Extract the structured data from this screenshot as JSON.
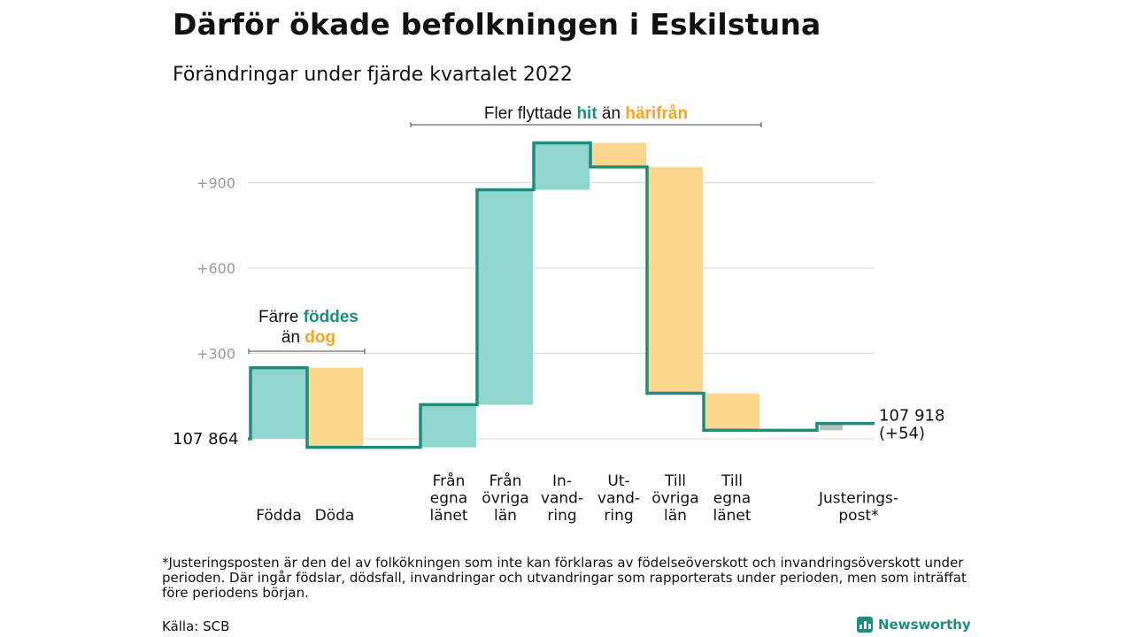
{
  "title": "Därför ökade befolkningen i Eskilstuna",
  "subtitle": "Förändringar under fjärde kvartalet 2022",
  "footnote": "*Justeringsposten är den del av folkökningen som inte kan förklaras av födelseöverskott och invandringsöverskott under perioden. Där ingår födslar, dödsfall, invandringar och utvandringar som rapporterats under perioden, men som inträffat före periodens början.",
  "source": "Källa: SCB",
  "brand": "Newsworthy",
  "colors": {
    "increase": "#8fd6cc",
    "decrease": "#fbd78f",
    "adjustment": "#b9c1c1",
    "line": "#1e8c7e",
    "highlight_green": "#1e8c7e",
    "highlight_orange": "#f4a424",
    "grid": "#dddddd",
    "tick": "#999999"
  },
  "chart_data": {
    "type": "waterfall",
    "start_label": "107 864",
    "end_label_lines": [
      "107 918",
      "(+54)"
    ],
    "y_ticks": [
      {
        "value": 300,
        "label": "+300"
      },
      {
        "value": 600,
        "label": "+600"
      },
      {
        "value": 900,
        "label": "+900"
      }
    ],
    "ylim": [
      -50,
      1100
    ],
    "steps": [
      {
        "category": [
          "Födda"
        ],
        "from": 0,
        "to": 250
      },
      {
        "category": [
          "Döda"
        ],
        "from": 250,
        "to": -30
      },
      {
        "category": [
          ""
        ],
        "from": -30,
        "to": -30
      },
      {
        "category": [
          "Från",
          "egna",
          "länet"
        ],
        "from": -30,
        "to": 120
      },
      {
        "category": [
          "Från",
          "övriga",
          "län"
        ],
        "from": 120,
        "to": 875
      },
      {
        "category": [
          "In-",
          "vand-",
          "ring"
        ],
        "from": 875,
        "to": 1040
      },
      {
        "category": [
          "Ut-",
          "vand-",
          "ring"
        ],
        "from": 1040,
        "to": 955
      },
      {
        "category": [
          "Till",
          "övriga",
          "län"
        ],
        "from": 955,
        "to": 160
      },
      {
        "category": [
          "Till",
          "egna",
          "länet"
        ],
        "from": 160,
        "to": 30
      },
      {
        "category": [
          ""
        ],
        "from": 30,
        "to": 30
      },
      {
        "category": [
          "Justerings-",
          "post*"
        ],
        "from": 30,
        "to": 54
      }
    ],
    "annotations": [
      {
        "line1": [
          {
            "text": "Färre ",
            "style": "normal"
          },
          {
            "text": "föddes",
            "style": "green"
          }
        ],
        "line2": [
          {
            "text": "än ",
            "style": "normal"
          },
          {
            "text": "dog",
            "style": "orange"
          }
        ],
        "span": [
          0,
          1
        ]
      },
      {
        "line1": [
          {
            "text": "Fler flyttade ",
            "style": "normal"
          },
          {
            "text": "hit",
            "style": "green"
          },
          {
            "text": " än ",
            "style": "normal"
          },
          {
            "text": "härifrån",
            "style": "orange"
          }
        ],
        "span": [
          3,
          8
        ]
      }
    ]
  }
}
